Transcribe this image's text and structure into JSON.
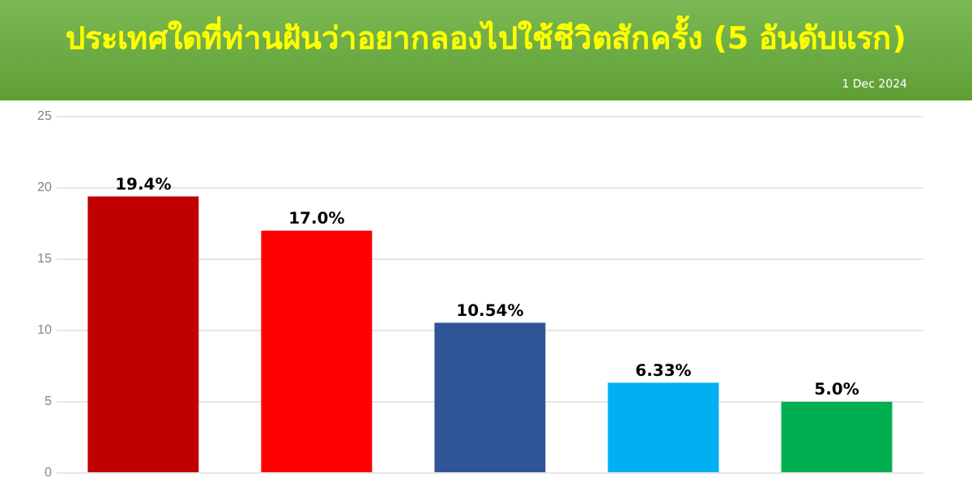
{
  "chart_data": {
    "type": "bar",
    "title": "ประเทศใดที่ท่านฝันว่าอยากลองไปใช้ชีวิตสักครั้ง (5 อันดับแรก)",
    "annotations": [
      "1 Dec 2024"
    ],
    "categories": [
      null,
      null,
      null,
      null,
      null
    ],
    "values": [
      19.4,
      17.0,
      10.54,
      6.33,
      5.0
    ],
    "colors": [
      "#c00000",
      "#ff0000",
      "#2f5597",
      "#00b0f0",
      "#00b050"
    ],
    "value_labels": [
      "19.4%",
      "17.0%",
      "10.54%",
      "6.33%",
      "5.0%"
    ],
    "ylim": [
      0,
      25
    ],
    "yticks": [
      0,
      5,
      10,
      15,
      20,
      25
    ],
    "grid": "y",
    "tick_labels": "y",
    "legend": false
  }
}
